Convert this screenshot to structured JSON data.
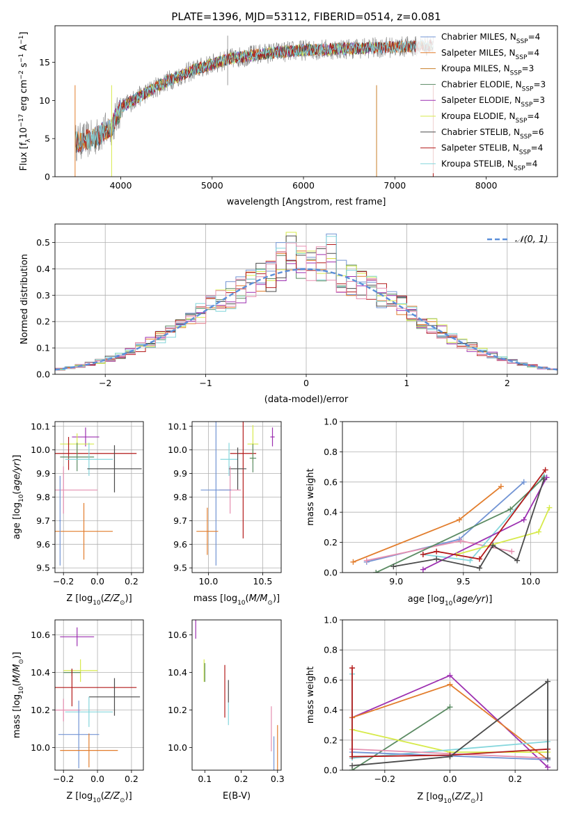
{
  "figure_title": "PLATE=1396, MJD=53112, FIBERID=0514, z=0.081",
  "colors": {
    "Chabrier MILES": "#7294d4",
    "Salpeter MILES": "#e27d2c",
    "Kroupa MILES": "#c87f2a",
    "Chabrier ELODIE": "#5a8a62",
    "Salpeter ELODIE": "#9c2fb0",
    "Kroupa ELODIE": "#d7ea4b",
    "Chabrier STELIB": "#4a4a4a",
    "Salpeter STELIB": "#b31a1a",
    "Kroupa STELIB": "#84d6dc",
    "pink": "#e58fb0",
    "normal": "#5b8fd9",
    "grid": "#b0b0b0"
  },
  "chart_data": [
    {
      "id": "spectrum",
      "type": "line",
      "title": "",
      "xlabel": "wavelength [Angstrom, rest frame]",
      "ylabel": "Flux [f_λ10^-17 erg cm^-2 s^-1 A^-1]",
      "xlim": [
        3280,
        8780
      ],
      "ylim": [
        0,
        19.8
      ],
      "xticks": [
        4000,
        5000,
        6000,
        7000,
        8000
      ],
      "yticks": [
        0,
        5,
        10,
        15
      ],
      "grid": false,
      "legend_position": "top-right",
      "legend": [
        {
          "name": "Chabrier MILES",
          "sub": "SSP",
          "n": "4"
        },
        {
          "name": "Salpeter MILES",
          "sub": "SSP",
          "n": "4"
        },
        {
          "name": "Kroupa MILES",
          "sub": "SSP",
          "n": "3"
        },
        {
          "name": "Chabrier ELODIE",
          "sub": "SSP",
          "n": "3"
        },
        {
          "name": "Salpeter ELODIE",
          "sub": "SSP",
          "n": "3"
        },
        {
          "name": "Kroupa ELODIE",
          "sub": "SSP",
          "n": "4"
        },
        {
          "name": "Chabrier STELIB",
          "sub": "SSP",
          "n": "6"
        },
        {
          "name": "Salpeter STELIB",
          "sub": "SSP",
          "n": "4"
        },
        {
          "name": "Kroupa STELIB",
          "sub": "SSP",
          "n": "4"
        }
      ],
      "continuum": {
        "x": [
          3500,
          3700,
          3900,
          4000,
          4200,
          4500,
          4800,
          5200,
          5600,
          6000,
          6500,
          7000,
          7200,
          7400
        ],
        "y": [
          4.5,
          5.0,
          6.5,
          9.0,
          10.5,
          12.5,
          14.0,
          15.5,
          16.2,
          16.6,
          16.8,
          17.0,
          17.1,
          17.2
        ]
      },
      "model_ranges": [
        {
          "series": "Chabrier MILES",
          "x": [
            3500,
            7400
          ]
        },
        {
          "series": "Salpeter MILES",
          "x": [
            3500,
            7400
          ]
        },
        {
          "series": "Kroupa MILES",
          "x": [
            3500,
            7400
          ]
        },
        {
          "series": "Chabrier ELODIE",
          "x": [
            3900,
            6800
          ]
        },
        {
          "series": "Salpeter ELODIE",
          "x": [
            3900,
            6800
          ]
        },
        {
          "series": "Kroupa ELODIE",
          "x": [
            3900,
            6800
          ]
        },
        {
          "series": "Chabrier STELIB",
          "x": [
            3500,
            8400
          ]
        },
        {
          "series": "Salpeter STELIB",
          "x": [
            3500,
            8400
          ]
        },
        {
          "series": "Kroupa STELIB",
          "x": [
            3500,
            8400
          ]
        }
      ]
    },
    {
      "id": "residuals",
      "type": "line",
      "title": "",
      "xlabel": "(data-model)/error",
      "ylabel": "Normed distribution",
      "xlim": [
        -2.5,
        2.5
      ],
      "ylim": [
        0,
        0.57
      ],
      "xticks": [
        -2,
        -1,
        0,
        1,
        2
      ],
      "yticks": [
        0.0,
        0.1,
        0.2,
        0.3,
        0.4,
        0.5
      ],
      "grid": true,
      "legend_position": "top-right",
      "legend": [
        "𝒩(0, 1)"
      ],
      "bin_width": 0.1,
      "bins_start": -2.5,
      "normal": {
        "mean": 0,
        "sigma": 1
      }
    },
    {
      "id": "age_vs_Z",
      "type": "scatter",
      "xlabel": "Z [log10(Z/Z⊙)]",
      "ylabel": "age [log10(age/yr)]",
      "xlim": [
        -0.25,
        0.27
      ],
      "ylim": [
        9.48,
        10.12
      ],
      "xticks": [
        -0.2,
        0.0,
        0.2
      ],
      "yticks": [
        9.5,
        9.6,
        9.7,
        9.8,
        9.9,
        10.0,
        10.1
      ],
      "grid": true,
      "points": [
        {
          "series": "Salpeter ELODIE",
          "x": -0.07,
          "y": 10.055,
          "xerr": 0.08,
          "yerr": 0.04
        },
        {
          "series": "Kroupa ELODIE",
          "x": -0.12,
          "y": 10.025,
          "xerr": 0.1,
          "yerr": 0.045
        },
        {
          "series": "Salpeter STELIB",
          "x": -0.17,
          "y": 9.985,
          "xerr": 0.4,
          "yerr": 0.07
        },
        {
          "series": "Chabrier ELODIE",
          "x": -0.12,
          "y": 9.97,
          "xerr": 0.1,
          "yerr": 0.06
        },
        {
          "series": "Kroupa STELIB",
          "x": -0.05,
          "y": 9.96,
          "xerr": 0.14,
          "yerr": 0.07
        },
        {
          "series": "Chabrier STELIB",
          "x": 0.1,
          "y": 9.92,
          "xerr": 0.16,
          "yerr": 0.1
        },
        {
          "series": "pink",
          "x": -0.2,
          "y": 9.83,
          "xerr": 0.2,
          "yerr": 0.1
        },
        {
          "series": "Salpeter MILES",
          "x": -0.08,
          "y": 9.655,
          "xerr": 0.17,
          "yerr": 0.12
        },
        {
          "series": "Chabrier MILES",
          "x": -0.22,
          "y": 9.7,
          "xerr": 0.005,
          "yerr": 0.19
        }
      ]
    },
    {
      "id": "age_vs_mass",
      "type": "scatter",
      "xlabel": "mass [log10(M/M⊙)]",
      "ylabel": "",
      "xlim": [
        9.85,
        10.67
      ],
      "ylim": [
        9.48,
        10.12
      ],
      "xticks": [
        10.0,
        10.5
      ],
      "yticks": [
        9.5,
        9.6,
        9.7,
        9.8,
        9.9,
        10.0,
        10.1
      ],
      "grid": true,
      "points": [
        {
          "series": "Salpeter ELODIE",
          "x": 10.59,
          "y": 10.055,
          "xerr": 0.02,
          "yerr": 0.04
        },
        {
          "series": "Kroupa ELODIE",
          "x": 10.41,
          "y": 10.025,
          "xerr": 0.05,
          "yerr": 0.08
        },
        {
          "series": "Salpeter STELIB",
          "x": 10.32,
          "y": 9.985,
          "xerr": 0.12,
          "yerr": 0.36
        },
        {
          "series": "Chabrier ELODIE",
          "x": 10.41,
          "y": 9.965,
          "xerr": 0.03,
          "yerr": 0.06
        },
        {
          "series": "Kroupa STELIB",
          "x": 10.19,
          "y": 9.96,
          "xerr": 0.08,
          "yerr": 0.07
        },
        {
          "series": "Chabrier STELIB",
          "x": 10.27,
          "y": 9.92,
          "xerr": 0.08,
          "yerr": 0.09
        },
        {
          "series": "pink",
          "x": 10.2,
          "y": 9.83,
          "xerr": 0.1,
          "yerr": 0.1
        },
        {
          "series": "Chabrier MILES",
          "x": 10.07,
          "y": 9.83,
          "xerr": 0.14,
          "yerr": 0.32
        },
        {
          "series": "Salpeter MILES",
          "x": 9.99,
          "y": 9.655,
          "xerr": 0.1,
          "yerr": 0.1
        }
      ]
    },
    {
      "id": "weight_vs_age",
      "type": "line",
      "xlabel": "age [log10(age/yr)]",
      "ylabel": "mass weight",
      "xlim": [
        8.6,
        10.2
      ],
      "ylim": [
        0,
        1
      ],
      "xticks": [
        9.0,
        9.5,
        10.0
      ],
      "yticks": [
        0.0,
        0.2,
        0.4,
        0.6,
        0.8,
        1.0
      ],
      "grid": true,
      "series": [
        {
          "name": "Salpeter MILES",
          "x": [
            8.68,
            9.47,
            9.78
          ],
          "y": [
            0.07,
            0.35,
            0.57
          ]
        },
        {
          "name": "Chabrier MILES",
          "x": [
            8.78,
            9.47,
            9.95
          ],
          "y": [
            0.07,
            0.22,
            0.6
          ]
        },
        {
          "name": "pink",
          "x": [
            8.78,
            9.48,
            9.86
          ],
          "y": [
            0.08,
            0.21,
            0.14
          ]
        },
        {
          "name": "Kroupa STELIB",
          "x": [
            9.2,
            9.55,
            10.1
          ],
          "y": [
            0.12,
            0.08,
            0.64
          ]
        },
        {
          "name": "Chabrier ELODIE",
          "x": [
            8.85,
            9.85,
            10.1
          ],
          "y": [
            0.0,
            0.42,
            0.63
          ]
        },
        {
          "name": "Salpeter ELODIE",
          "x": [
            9.2,
            9.95,
            10.12
          ],
          "y": [
            0.02,
            0.35,
            0.63
          ]
        },
        {
          "name": "Kroupa ELODIE",
          "x": [
            9.45,
            10.06,
            10.14
          ],
          "y": [
            0.12,
            0.27,
            0.43
          ]
        },
        {
          "name": "Salpeter STELIB",
          "x": [
            9.2,
            9.3,
            9.62,
            10.11
          ],
          "y": [
            0.12,
            0.14,
            0.09,
            0.68
          ]
        },
        {
          "name": "Chabrier STELIB",
          "x": [
            8.98,
            9.3,
            9.62,
            9.72,
            9.9,
            10.1
          ],
          "y": [
            0.04,
            0.09,
            0.03,
            0.18,
            0.08,
            0.62
          ]
        }
      ]
    },
    {
      "id": "mass_vs_Z",
      "type": "scatter",
      "xlabel": "Z [log10(Z/Z⊙)]",
      "ylabel": "mass [log10(M/M⊙)]",
      "xlim": [
        -0.25,
        0.27
      ],
      "ylim": [
        9.88,
        10.68
      ],
      "xticks": [
        -0.2,
        0.0,
        0.2
      ],
      "yticks": [
        10.0,
        10.2,
        10.4,
        10.6
      ],
      "grid": true,
      "points": [
        {
          "series": "Salpeter ELODIE",
          "x": -0.12,
          "y": 10.59,
          "xerr": 0.1,
          "yerr": 0.05
        },
        {
          "series": "Kroupa ELODIE",
          "x": -0.1,
          "y": 10.41,
          "xerr": 0.1,
          "yerr": 0.06
        },
        {
          "series": "Chabrier ELODIE",
          "x": -0.15,
          "y": 10.4,
          "xerr": 0.05,
          "yerr": 0.02
        },
        {
          "series": "Salpeter STELIB",
          "x": -0.15,
          "y": 10.32,
          "xerr": 0.38,
          "yerr": 0.1
        },
        {
          "series": "Chabrier STELIB",
          "x": 0.1,
          "y": 10.27,
          "xerr": 0.15,
          "yerr": 0.1
        },
        {
          "series": "Kroupa STELIB",
          "x": -0.05,
          "y": 10.19,
          "xerr": 0.14,
          "yerr": 0.08
        },
        {
          "series": "pink",
          "x": -0.2,
          "y": 10.2,
          "xerr": 0.1,
          "yerr": 0.06
        },
        {
          "series": "Chabrier MILES",
          "x": -0.11,
          "y": 10.07,
          "xerr": 0.12,
          "yerr": 0.18
        },
        {
          "series": "Salpeter MILES",
          "x": -0.05,
          "y": 9.985,
          "xerr": 0.17,
          "yerr": 0.09
        }
      ]
    },
    {
      "id": "mass_vs_ebv",
      "type": "scatter",
      "xlabel": "E(B-V)",
      "ylabel": "",
      "xlim": [
        0.065,
        0.31
      ],
      "ylim": [
        9.88,
        10.68
      ],
      "xticks": [
        0.1,
        0.2,
        0.3
      ],
      "yticks": [
        10.0,
        10.2,
        10.4,
        10.6
      ],
      "grid": false,
      "points": [
        {
          "series": "Salpeter ELODIE",
          "x": 0.075,
          "y": 10.63,
          "xerr": 0.0,
          "yerr": 0.05
        },
        {
          "series": "Kroupa ELODIE",
          "x": 0.098,
          "y": 10.41,
          "xerr": 0.0,
          "yerr": 0.06
        },
        {
          "series": "Chabrier ELODIE",
          "x": 0.1,
          "y": 10.4,
          "xerr": 0.0,
          "yerr": 0.05
        },
        {
          "series": "Salpeter STELIB",
          "x": 0.155,
          "y": 10.3,
          "xerr": 0.0,
          "yerr": 0.14
        },
        {
          "series": "Chabrier STELIB",
          "x": 0.165,
          "y": 10.3,
          "xerr": 0.0,
          "yerr": 0.06
        },
        {
          "series": "Kroupa STELIB",
          "x": 0.165,
          "y": 10.18,
          "xerr": 0.0,
          "yerr": 0.06
        },
        {
          "series": "pink",
          "x": 0.283,
          "y": 10.1,
          "xerr": 0.0,
          "yerr": 0.12
        },
        {
          "series": "Chabrier MILES",
          "x": 0.29,
          "y": 9.96,
          "xerr": 0.0,
          "yerr": 0.1
        },
        {
          "series": "Salpeter MILES",
          "x": 0.3,
          "y": 10.0,
          "xerr": 0.0,
          "yerr": 0.12
        }
      ]
    },
    {
      "id": "weight_vs_Z",
      "type": "line",
      "xlabel": "Z [log10(Z/Z⊙)]",
      "ylabel": "mass weight",
      "xlim": [
        -0.33,
        0.33
      ],
      "ylim": [
        0,
        1
      ],
      "xticks": [
        -0.2,
        0.0,
        0.2
      ],
      "yticks": [
        0.0,
        0.2,
        0.4,
        0.6,
        0.8,
        1.0
      ],
      "grid": true,
      "series": [
        {
          "name": "Salpeter ELODIE",
          "x": [
            -0.3,
            0.0,
            0.3
          ],
          "y": [
            0.35,
            0.63,
            0.02
          ]
        },
        {
          "name": "Salpeter MILES",
          "x": [
            -0.3,
            0.0,
            0.3
          ],
          "y": [
            0.35,
            0.57,
            0.07
          ]
        },
        {
          "name": "Chabrier ELODIE",
          "x": [
            -0.3,
            0.0
          ],
          "y": [
            0.0,
            0.42
          ]
        },
        {
          "name": "Kroupa ELODIE",
          "x": [
            -0.3,
            0.0,
            0.3
          ],
          "y": [
            0.27,
            0.12,
            0.12
          ]
        },
        {
          "name": "Kroupa STELIB",
          "x": [
            -0.3,
            -0.3,
            0.3
          ],
          "y": [
            0.64,
            0.08,
            0.19
          ]
        },
        {
          "name": "Chabrier MILES",
          "x": [
            -0.3,
            0.3
          ],
          "y": [
            0.12,
            0.07
          ]
        },
        {
          "name": "pink",
          "x": [
            -0.3,
            0.3
          ],
          "y": [
            0.14,
            0.08
          ]
        },
        {
          "name": "Salpeter STELIB",
          "x": [
            -0.3,
            -0.3,
            0.0,
            0.3
          ],
          "y": [
            0.68,
            0.09,
            0.1,
            0.14
          ]
        },
        {
          "name": "Chabrier STELIB",
          "x": [
            -0.3,
            0.0,
            0.3,
            0.3
          ],
          "y": [
            0.03,
            0.09,
            0.59,
            0.08
          ]
        }
      ]
    }
  ]
}
